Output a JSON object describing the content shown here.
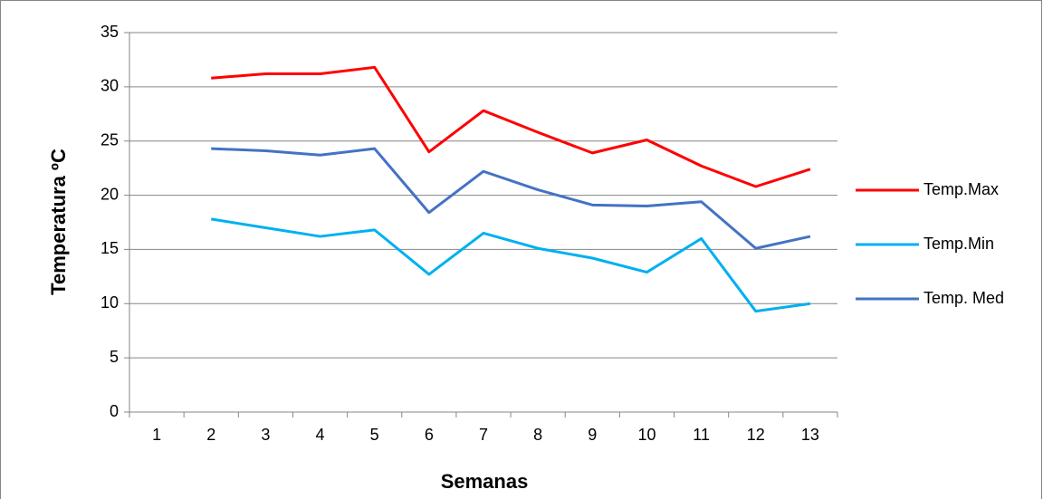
{
  "chart_data": {
    "type": "line",
    "x_label": "Semanas",
    "y_label": "Temperatura ºC",
    "categories": [
      "1",
      "2",
      "3",
      "4",
      "5",
      "6",
      "7",
      "8",
      "9",
      "10",
      "11",
      "12",
      "13"
    ],
    "series": [
      {
        "name": "Temp.Max",
        "color": "#ff0000",
        "values": [
          null,
          30.8,
          31.2,
          31.2,
          31.8,
          24.0,
          27.8,
          25.8,
          23.9,
          25.1,
          22.7,
          20.8,
          22.4
        ]
      },
      {
        "name": "Temp.Min",
        "color": "#00b0f0",
        "values": [
          null,
          17.8,
          17.0,
          16.2,
          16.8,
          12.7,
          16.5,
          15.1,
          14.2,
          12.9,
          16.0,
          9.3,
          10.0
        ]
      },
      {
        "name": "Temp. Med",
        "color": "#4472c4",
        "values": [
          null,
          24.3,
          24.1,
          23.7,
          24.3,
          18.4,
          22.2,
          20.5,
          19.1,
          19.0,
          19.4,
          15.1,
          16.2
        ]
      }
    ],
    "ylim": [
      0,
      35
    ],
    "yticks": [
      0,
      5,
      10,
      15,
      20,
      25,
      30,
      35
    ],
    "grid": true,
    "legend": "right"
  }
}
